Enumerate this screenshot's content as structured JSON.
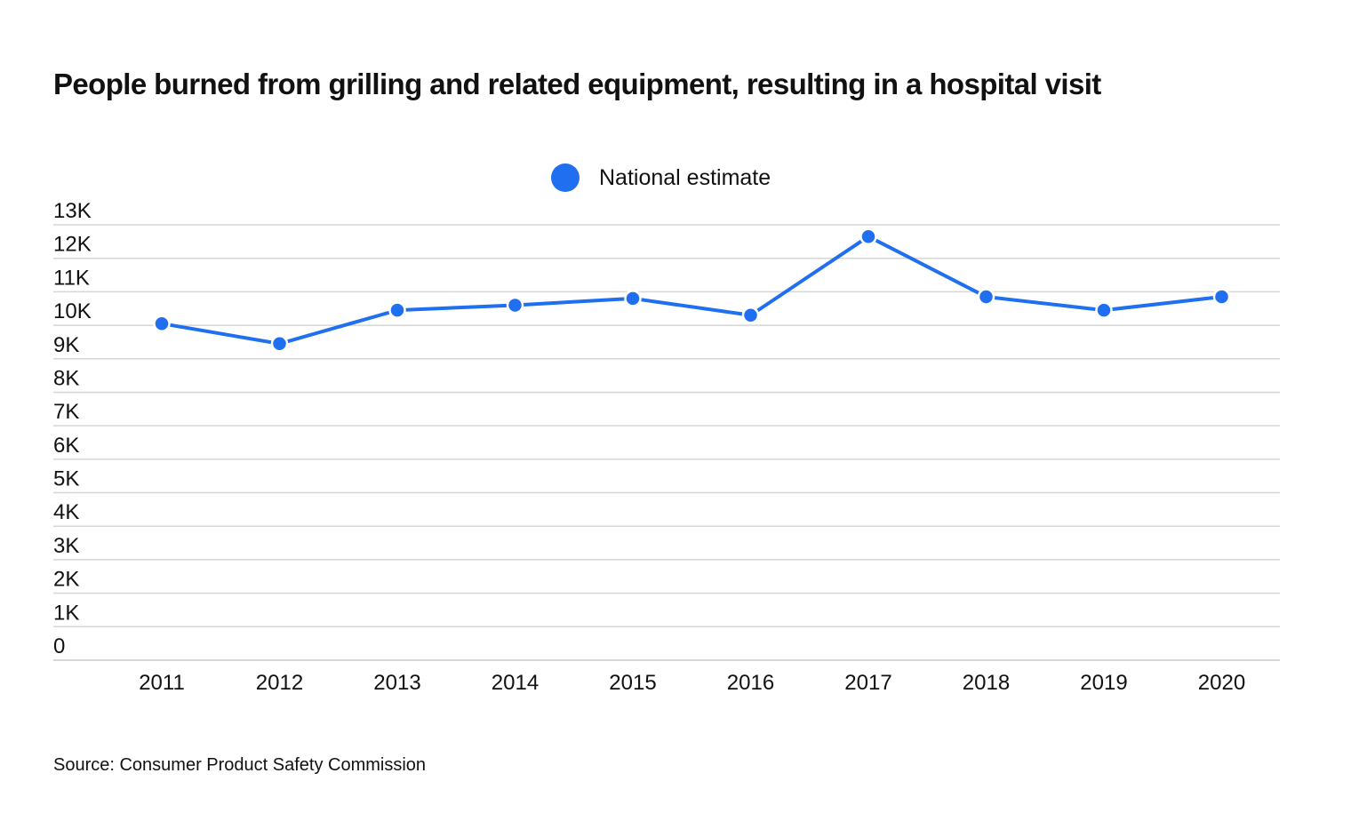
{
  "chart_data": {
    "type": "line",
    "title": "People burned from grilling and related equipment, resulting in a hospital visit",
    "categories": [
      "2011",
      "2012",
      "2013",
      "2014",
      "2015",
      "2016",
      "2017",
      "2018",
      "2019",
      "2020"
    ],
    "series": [
      {
        "name": "National estimate",
        "color": "#1f6ff0",
        "values": [
          10050,
          9450,
          10450,
          10600,
          10800,
          10300,
          12650,
          10850,
          10450,
          10850
        ]
      }
    ],
    "y_ticks": [
      0,
      1000,
      2000,
      3000,
      4000,
      5000,
      6000,
      7000,
      8000,
      9000,
      10000,
      11000,
      12000,
      13000
    ],
    "y_tick_labels": [
      "0",
      "1K",
      "2K",
      "3K",
      "4K",
      "5K",
      "6K",
      "7K",
      "8K",
      "9K",
      "10K",
      "11K",
      "12K",
      "13K"
    ],
    "ylim": [
      0,
      13000
    ],
    "grid": true,
    "legend_position": "top-center",
    "xlabel": "",
    "ylabel": ""
  },
  "legend": {
    "label": "National estimate"
  },
  "source": "Source: Consumer Product Safety Commission",
  "colors": {
    "series": "#1f6ff0",
    "grid": "#d6d6d6",
    "text": "#111111"
  }
}
